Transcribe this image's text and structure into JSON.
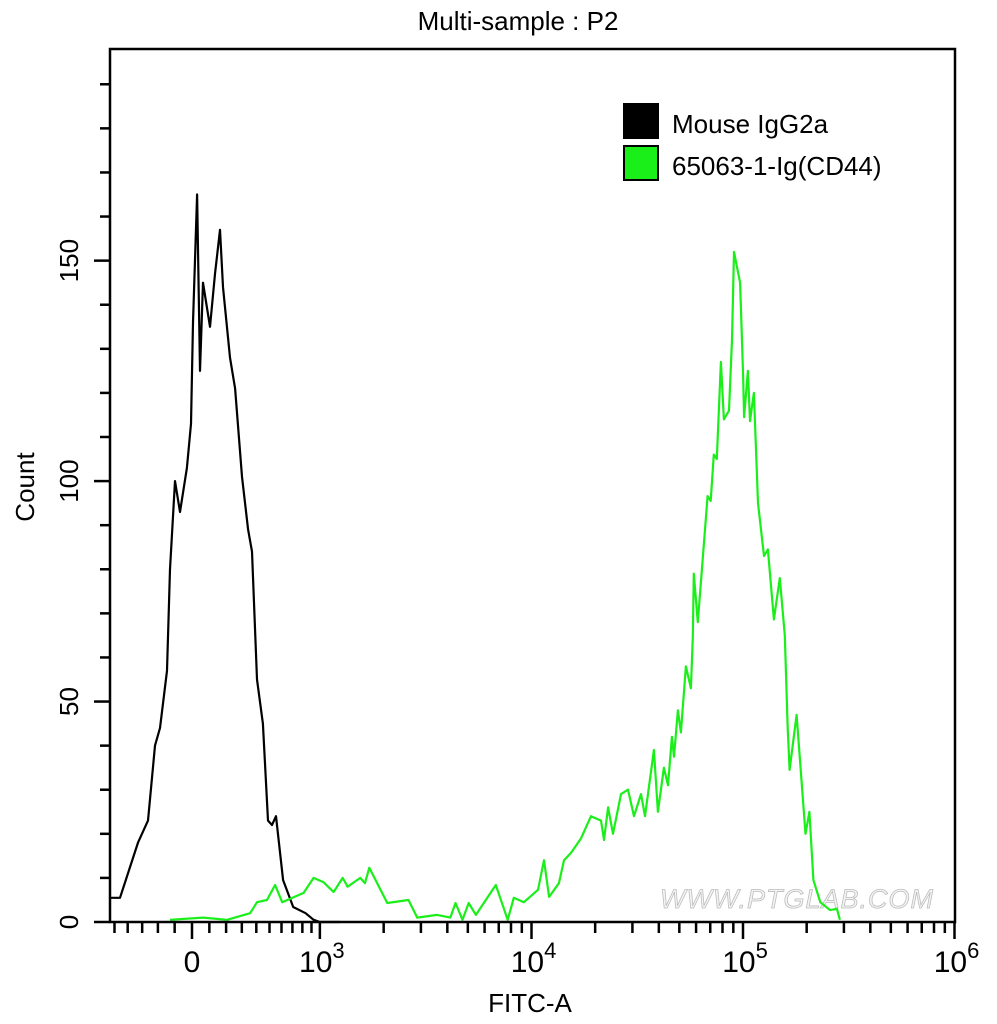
{
  "chart_data": {
    "type": "line",
    "subtype": "flow cytometry histogram",
    "title": "Multi-sample : P2",
    "xlabel": "FITC-A",
    "ylabel": "Count",
    "xscale": "biexponential",
    "xlim": [
      -535,
      1000000
    ],
    "ylim": [
      0,
      198
    ],
    "grid": false,
    "legend_position": "top-right",
    "x_ticks": [
      {
        "value": 0,
        "base": "0",
        "exp": ""
      },
      {
        "value": 1000,
        "base": "10",
        "exp": "3"
      },
      {
        "value": 10000,
        "base": "10",
        "exp": "4"
      },
      {
        "value": 100000,
        "base": "10",
        "exp": "5"
      },
      {
        "value": 1000000,
        "base": "10",
        "exp": "6"
      }
    ],
    "y_ticks": [
      {
        "value": 0,
        "label": "0"
      },
      {
        "value": 50,
        "label": "50"
      },
      {
        "value": 100,
        "label": "100"
      },
      {
        "value": 150,
        "label": "150"
      }
    ],
    "series": [
      {
        "name": "Mouse IgG2a",
        "color": "#000000",
        "x": [
          -535,
          -457,
          -328,
          -262,
          -218,
          -187,
          -145,
          -127,
          -98,
          -69,
          -29,
          -6,
          6,
          29,
          46,
          63,
          104,
          133,
          163,
          181,
          224,
          256,
          301,
          342,
          369,
          405,
          449,
          488,
          520,
          553,
          614,
          708,
          834,
          925,
          1000,
          1245
        ],
        "y": [
          5.5,
          5.5,
          18,
          23,
          40,
          44,
          57,
          80,
          100,
          93,
          103,
          113,
          136,
          165,
          125,
          145,
          135,
          147,
          157,
          144,
          128,
          121,
          101,
          89,
          84,
          55,
          45,
          23,
          22,
          24,
          9.5,
          3.4,
          2,
          0.5,
          0,
          0
        ]
      },
      {
        "name": "65063-1-Ig(CD44)",
        "color": "#1aef1a",
        "x": [
          -127,
          63,
          206,
          356,
          405,
          480,
          545,
          606,
          813,
          925,
          1040,
          1160,
          1280,
          1350,
          1550,
          1630,
          1710,
          2080,
          2620,
          2880,
          3580,
          4130,
          4370,
          4720,
          5050,
          5460,
          6780,
          7720,
          8250,
          9210,
          10730,
          11460,
          12110,
          13480,
          14250,
          15390,
          17160,
          19120,
          21320,
          22030,
          23030,
          24290,
          26490,
          28600,
          30510,
          32930,
          34400,
          37910,
          39610,
          42260,
          44190,
          46120,
          47160,
          49230,
          50870,
          53680,
          56680,
          57900,
          58550,
          61120,
          68050,
          70340,
          72730,
          75210,
          78620,
          81240,
          85830,
          88730,
          90700,
          96880,
          100100,
          101200,
          105500,
          107900,
          112600,
          117700,
          125700,
          131100,
          140000,
          149300,
          157600,
          162700,
          166100,
          179200,
          197500,
          206100,
          215100,
          231900,
          258000,
          278000,
          287300
        ],
        "y": [
          0.5,
          1,
          0.5,
          2,
          4.5,
          5,
          8.4,
          4.5,
          6.6,
          10,
          9,
          6.8,
          10,
          8,
          10,
          8.8,
          12.3,
          4.3,
          5,
          1,
          1.6,
          1,
          4.3,
          0.5,
          4.3,
          1.6,
          8.4,
          0.5,
          5.5,
          4.5,
          7.3,
          14,
          5.7,
          8.8,
          14,
          15.7,
          19,
          24,
          23,
          18.6,
          26,
          20,
          29,
          30,
          24,
          29,
          24,
          39,
          25,
          35,
          31,
          42,
          37.5,
          48,
          43,
          58,
          53,
          64.5,
          79,
          68,
          96.6,
          95.5,
          106,
          105,
          127,
          114,
          116,
          132,
          152,
          145,
          124,
          114.5,
          125,
          113.6,
          120,
          95,
          83,
          84.5,
          68.6,
          78,
          65,
          44,
          34.5,
          47,
          20,
          25,
          9.5,
          4.5,
          2.7,
          3,
          0.5
        ]
      }
    ],
    "watermark": "WWW.PTGLAB.COM"
  }
}
